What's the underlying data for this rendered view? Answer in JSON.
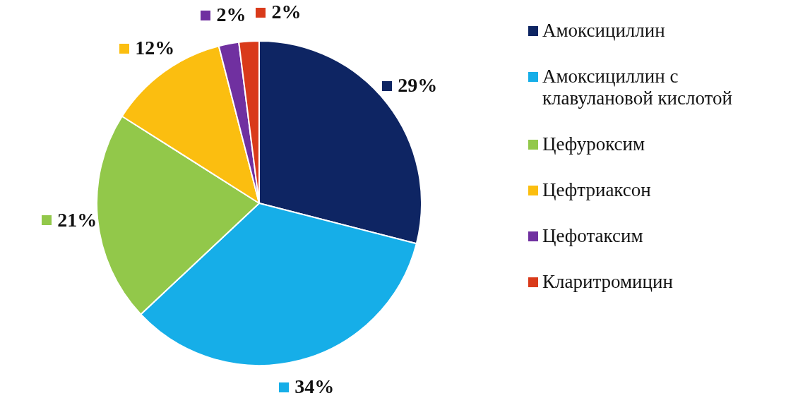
{
  "chart_data": {
    "type": "pie",
    "categories": [
      "Амоксициллин",
      "Амоксициллин с клавулановой кислотой",
      "Цефуроксим",
      "Цефтриаксон",
      "Цефотаксим",
      "Кларитромицин"
    ],
    "values": [
      29,
      34,
      21,
      12,
      2,
      2
    ],
    "colors": [
      "#0e2563",
      "#16aee8",
      "#92c84a",
      "#fbbe10",
      "#7030a0",
      "#d93a1a"
    ],
    "value_labels": [
      "29%",
      "34%",
      "21%",
      "12%",
      "2%",
      "2%"
    ],
    "legend": "right"
  }
}
